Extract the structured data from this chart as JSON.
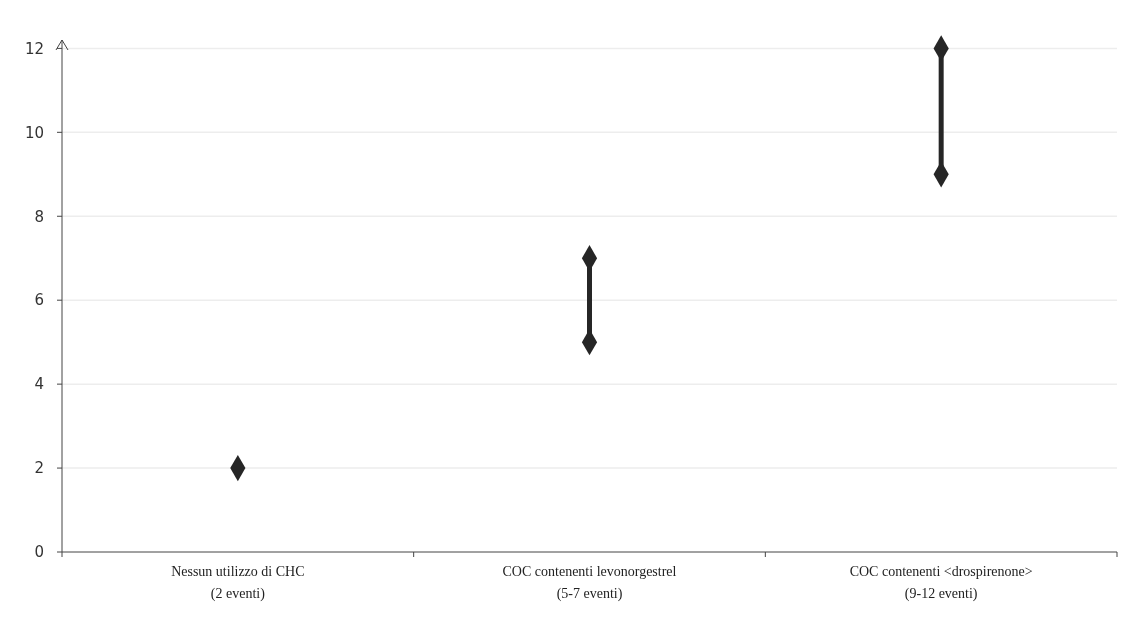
{
  "chart_data": {
    "type": "line",
    "categories": [
      "Nessun utilizzo di CHC\n(2 eventi)",
      "COC contenenti levonorgestrel\n(5-7 eventi)",
      "COC contenenti <drospirenone>\n(9-12 eventi)"
    ],
    "series": [
      {
        "type": "scatter",
        "color": "#262626",
        "x": [
          "Nessun utilizzo di CHC\n(2 eventi)"
        ],
        "values": [
          2
        ]
      },
      {
        "color": "#262626",
        "x": [
          "COC contenenti levonorgestrel\n(5-7 eventi)",
          "COC contenenti levonorgestrel\n(5-7 eventi)"
        ],
        "values": [
          5,
          7
        ]
      },
      {
        "color": "#262626",
        "x": [
          "COC contenenti <drospirenone>\n(9-12 eventi)",
          "COC contenenti <drospirenone>\n(9-12 eventi)"
        ],
        "values": [
          9,
          12
        ]
      }
    ],
    "ylim": [
      0,
      12.2
    ],
    "yticks": [
      0,
      2,
      4,
      6,
      8,
      10,
      12
    ],
    "grid": "y",
    "marker": "diamond",
    "line_style": "solid"
  }
}
